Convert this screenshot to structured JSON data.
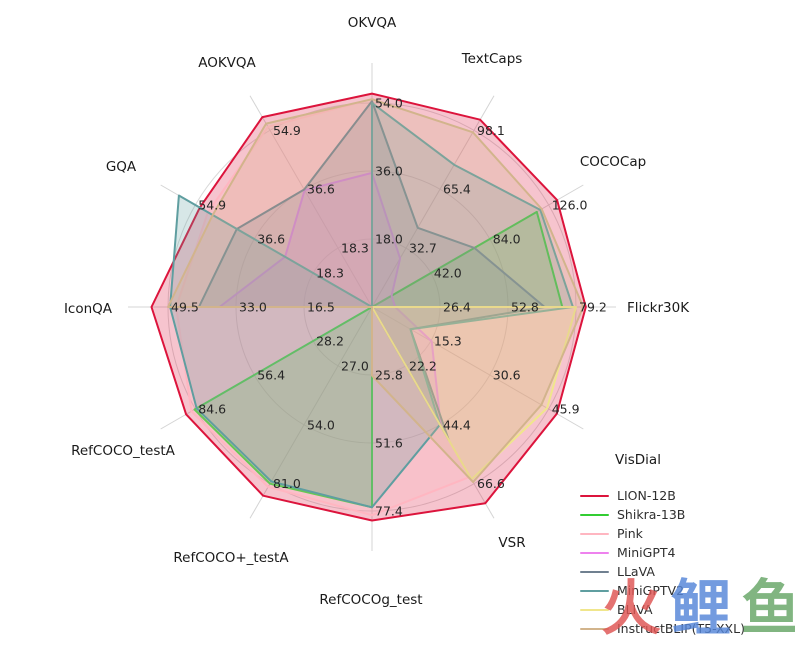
{
  "chart_data": {
    "type": "radar",
    "grid": true,
    "grid_rings": 3,
    "legend_position": "lower right",
    "axes": [
      {
        "label": "OKVQA",
        "ticks": [
          18.0,
          36.0,
          54.0
        ]
      },
      {
        "label": "TextCaps",
        "ticks": [
          32.7,
          65.4,
          98.1
        ]
      },
      {
        "label": "COCOCap",
        "ticks": [
          42.0,
          84.0,
          126.0
        ]
      },
      {
        "label": "Flickr30K",
        "ticks": [
          26.4,
          52.8,
          79.2
        ]
      },
      {
        "label": "VisDial",
        "ticks": [
          15.3,
          30.6,
          45.9
        ]
      },
      {
        "label": "VSR",
        "ticks": [
          22.2,
          44.4,
          66.6
        ]
      },
      {
        "label": "RefCOCOg_test",
        "ticks": [
          25.8,
          51.6,
          77.4
        ]
      },
      {
        "label": "RefCOCO+_testA",
        "ticks": [
          27.0,
          54.0,
          81.0
        ]
      },
      {
        "label": "RefCOCO_testA",
        "ticks": [
          28.2,
          56.4,
          84.6
        ]
      },
      {
        "label": "IconQA",
        "ticks": [
          16.5,
          33.0,
          49.5
        ]
      },
      {
        "label": "GQA",
        "ticks": [
          18.3,
          36.6,
          54.9
        ]
      },
      {
        "label": "AOKVQA",
        "ticks": [
          18.3,
          36.6,
          54.9
        ]
      }
    ],
    "series": [
      {
        "name": "LION-12B",
        "color": "#dc143c",
        "values": [
          56.5,
          104.0,
          132.0,
          83.0,
          48.0,
          74.0,
          81.0,
          86.5,
          89.0,
          53.5,
          53.5,
          59.0
        ]
      },
      {
        "name": "Shikra-13B",
        "color": "#32cd32",
        "values": [
          47.2,
          0,
          117.5,
          73.9,
          0,
          0,
          76.0,
          81.0,
          85.0,
          0,
          0,
          0
        ]
      },
      {
        "name": "Pink",
        "color": "#ffb6c1",
        "values": [
          55.0,
          0,
          0,
          0,
          0,
          64.0,
          79.0,
          82.5,
          86.5,
          47.5,
          51.0,
          56.0
        ]
      },
      {
        "name": "MiniGPT4",
        "color": "#ee82ee",
        "values": [
          35.5,
          27.0,
          14.0,
          9.0,
          15.5,
          45.0,
          0,
          0,
          0,
          37.0,
          27.0,
          36.3
        ]
      },
      {
        "name": "LLaVA",
        "color": "#708090",
        "values": [
          54.5,
          44.0,
          73.0,
          67.0,
          10.0,
          50.0,
          0,
          0,
          0,
          42.0,
          42.0,
          36.5
        ]
      },
      {
        "name": "MiniGPTV2",
        "color": "#5f9ea0",
        "values": [
          54.0,
          79.0,
          120.0,
          78.0,
          10.0,
          44.4,
          76.0,
          80.0,
          84.0,
          49.0,
          60.0,
          0
        ]
      },
      {
        "name": "BLIVA",
        "color": "#f0e68c",
        "values": [
          0,
          0,
          0,
          79.2,
          45.5,
          65.0,
          0,
          0,
          0,
          0,
          0,
          0
        ]
      },
      {
        "name": "InstructBLIP(T5-XXL)",
        "color": "#d2b48c",
        "values": [
          55.0,
          97.0,
          121.0,
          82.0,
          44.0,
          66.0,
          26.0,
          0,
          0,
          49.5,
          49.5,
          57.0
        ]
      }
    ]
  },
  "legend": {
    "entries": [
      "LION-12B",
      "Shikra-13B",
      "Pink",
      "MiniGPT4",
      "LLaVA",
      "MiniGPTV2",
      "BLIVA",
      "InstructBLIP(T5-XXL)"
    ]
  },
  "watermark": {
    "chars": [
      {
        "char": "火",
        "color": "#df5452"
      },
      {
        "char": "鲤",
        "color": "#5586d8"
      },
      {
        "char": "鱼",
        "color": "#66a666"
      }
    ]
  }
}
